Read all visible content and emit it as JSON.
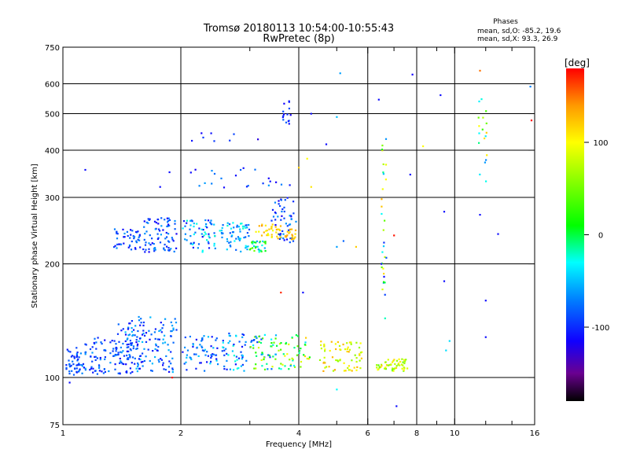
{
  "chart_data": {
    "type": "scatter",
    "title": "Tromsø 20180113 10:54:00-10:55:43",
    "subtitle": "RwPretec (8p)",
    "xlabel": "Frequency [MHz]",
    "ylabel": "Stationary phase Virtual Height [km]",
    "x_scale": "log",
    "y_scale": "log",
    "xlim": [
      1,
      16
    ],
    "ylim": [
      75,
      750
    ],
    "x_ticks": [
      1,
      2,
      4,
      6,
      8,
      10,
      16
    ],
    "x_tick_labels": [
      "1",
      "2",
      "4",
      "6",
      "8",
      "10",
      "16"
    ],
    "x_minor_ticks": [
      3,
      5,
      7,
      9,
      12,
      14
    ],
    "y_ticks": [
      75,
      100,
      200,
      300,
      400,
      500,
      600,
      750
    ],
    "y_tick_labels": [
      "75",
      "100",
      "200",
      "300",
      "400",
      "500",
      "600",
      "750"
    ],
    "grid": true,
    "grid_x": [
      2,
      4,
      6,
      8,
      10
    ],
    "grid_y": [
      100,
      200,
      300,
      400,
      500,
      600
    ],
    "stats": {
      "heading": "Phases",
      "line1": "mean, sd,O: -85.2, 19.6",
      "line2": "mean, sd,X:  93.3, 26.9"
    },
    "colorbar": {
      "label": "[deg]",
      "min": -180,
      "max": 180,
      "ticks": [
        100,
        0,
        -100
      ],
      "tick_labels": [
        "100",
        "0",
        "-100"
      ]
    },
    "colormap_stops": [
      {
        "v": -180,
        "color": "#000000"
      },
      {
        "v": -150,
        "color": "#6a0090"
      },
      {
        "v": -115,
        "color": "#1000ff"
      },
      {
        "v": -70,
        "color": "#0080ff"
      },
      {
        "v": -30,
        "color": "#00ffff"
      },
      {
        "v": 10,
        "color": "#00ff00"
      },
      {
        "v": 100,
        "color": "#ffff00"
      },
      {
        "v": 140,
        "color": "#ff9900"
      },
      {
        "v": 180,
        "color": "#ff0000"
      }
    ],
    "clusters": [
      {
        "f": [
          1.02,
          1.1
        ],
        "h": [
          100,
          120
        ],
        "n": 40,
        "p": [
          -110,
          -70
        ]
      },
      {
        "f": [
          1.1,
          1.5
        ],
        "h": [
          102,
          128
        ],
        "n": 110,
        "p": [
          -115,
          -60
        ]
      },
      {
        "f": [
          1.38,
          1.6
        ],
        "h": [
          105,
          140
        ],
        "n": 35,
        "p": [
          -120,
          -40
        ]
      },
      {
        "f": [
          1.45,
          1.95
        ],
        "h": [
          103,
          145
        ],
        "n": 120,
        "p": [
          -115,
          -50
        ]
      },
      {
        "f": [
          2.02,
          2.5
        ],
        "h": [
          104,
          130
        ],
        "n": 60,
        "p": [
          -115,
          -40
        ]
      },
      {
        "f": [
          2.55,
          2.95
        ],
        "h": [
          104,
          132
        ],
        "n": 50,
        "p": [
          -110,
          -20
        ]
      },
      {
        "f": [
          3.0,
          3.6
        ],
        "h": [
          105,
          130
        ],
        "n": 60,
        "p": [
          -100,
          90
        ]
      },
      {
        "f": [
          3.6,
          4.3
        ],
        "h": [
          105,
          130
        ],
        "n": 40,
        "p": [
          -60,
          120
        ]
      },
      {
        "f": [
          4.5,
          5.8
        ],
        "h": [
          104,
          125
        ],
        "n": 70,
        "p": [
          60,
          140
        ]
      },
      {
        "f": [
          6.3,
          7.6
        ],
        "h": [
          104,
          112
        ],
        "n": 55,
        "p": [
          40,
          120
        ]
      },
      {
        "f": [
          1.35,
          1.6
        ],
        "h": [
          218,
          248
        ],
        "n": 45,
        "p": [
          -115,
          -60
        ]
      },
      {
        "f": [
          1.6,
          1.95
        ],
        "h": [
          215,
          265
        ],
        "n": 80,
        "p": [
          -120,
          -60
        ]
      },
      {
        "f": [
          2.02,
          2.45
        ],
        "h": [
          215,
          262
        ],
        "n": 60,
        "p": [
          -115,
          -20
        ]
      },
      {
        "f": [
          2.5,
          3.0
        ],
        "h": [
          215,
          258
        ],
        "n": 60,
        "p": [
          -90,
          -20
        ]
      },
      {
        "f": [
          3.0,
          3.3
        ],
        "h": [
          215,
          230
        ],
        "n": 30,
        "p": [
          -60,
          60
        ]
      },
      {
        "f": [
          3.1,
          3.6
        ],
        "h": [
          235,
          255
        ],
        "n": 30,
        "p": [
          90,
          140
        ]
      },
      {
        "f": [
          3.4,
          3.95
        ],
        "h": [
          228,
          300
        ],
        "n": 50,
        "p": [
          -120,
          -60
        ]
      },
      {
        "f": [
          3.5,
          3.95
        ],
        "h": [
          232,
          248
        ],
        "n": 25,
        "p": [
          110,
          140
        ]
      },
      {
        "f": [
          2.1,
          3.8
        ],
        "h": [
          315,
          360
        ],
        "n": 22,
        "p": [
          -120,
          -60
        ]
      },
      {
        "f": [
          2.1,
          3.3
        ],
        "h": [
          420,
          445
        ],
        "n": 8,
        "p": [
          -130,
          -90
        ]
      },
      {
        "f": [
          3.6,
          3.9
        ],
        "h": [
          470,
          550
        ],
        "n": 15,
        "p": [
          -120,
          -80
        ]
      },
      {
        "f": [
          6.5,
          6.7
        ],
        "h": [
          130,
          430
        ],
        "n": 30,
        "p": [
          -110,
          140
        ]
      },
      {
        "f": [
          11.5,
          12.1
        ],
        "h": [
          320,
          600
        ],
        "n": 18,
        "p": [
          -100,
          120
        ]
      }
    ],
    "points": [
      [
        1.14,
        355,
        -110
      ],
      [
        1.04,
        97,
        -110
      ],
      [
        1.02,
        108,
        -100
      ],
      [
        1.9,
        100,
        175
      ],
      [
        1.77,
        320,
        -110
      ],
      [
        1.87,
        350,
        -110
      ],
      [
        4.0,
        360,
        120
      ],
      [
        4.2,
        380,
        100
      ],
      [
        4.3,
        320,
        110
      ],
      [
        5.1,
        640,
        -60
      ],
      [
        7.8,
        635,
        -115
      ],
      [
        9.2,
        560,
        -110
      ],
      [
        11.6,
        650,
        150
      ],
      [
        15.6,
        590,
        -70
      ],
      [
        15.7,
        480,
        180
      ],
      [
        7.7,
        345,
        -110
      ],
      [
        9.4,
        275,
        -110
      ],
      [
        11.6,
        270,
        -110
      ],
      [
        12.9,
        240,
        -110
      ],
      [
        9.4,
        180,
        -110
      ],
      [
        9.7,
        125,
        -40
      ],
      [
        9.5,
        118,
        -40
      ],
      [
        12.0,
        160,
        -110
      ],
      [
        12.0,
        128,
        -110
      ],
      [
        4.1,
        168,
        -110
      ],
      [
        3.6,
        168,
        170
      ],
      [
        5.0,
        93,
        -30
      ],
      [
        7.1,
        84,
        -110
      ],
      [
        8.3,
        410,
        100
      ],
      [
        6.5,
        200,
        -110
      ],
      [
        6.6,
        185,
        -110
      ],
      [
        4.7,
        415,
        -110
      ],
      [
        4.3,
        500,
        -110
      ],
      [
        5.0,
        490,
        -50
      ],
      [
        6.4,
        545,
        -110
      ],
      [
        7.0,
        238,
        175
      ],
      [
        5.6,
        222,
        120
      ],
      [
        5.0,
        222,
        -60
      ],
      [
        5.2,
        230,
        -80
      ]
    ]
  }
}
